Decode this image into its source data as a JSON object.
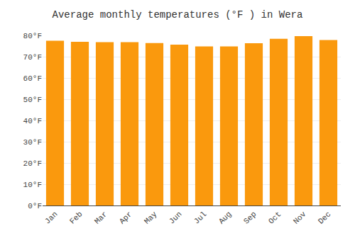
{
  "chart_data": {
    "type": "bar",
    "title": "Average monthly temperatures (°F ) in Wera",
    "categories": [
      "Jan",
      "Feb",
      "Mar",
      "Apr",
      "May",
      "Jun",
      "Jul",
      "Aug",
      "Sep",
      "Oct",
      "Nov",
      "Dec"
    ],
    "values": [
      77.5,
      77.0,
      76.8,
      76.8,
      76.4,
      75.7,
      74.8,
      74.8,
      76.3,
      78.4,
      79.7,
      77.8
    ],
    "color": "#fa990d",
    "ylim": [
      0,
      80
    ],
    "yticks": [
      {
        "value": 0,
        "label": "0°F"
      },
      {
        "value": 10,
        "label": "10°F"
      },
      {
        "value": 20,
        "label": "20°F"
      },
      {
        "value": 30,
        "label": "30°F"
      },
      {
        "value": 40,
        "label": "40°F"
      },
      {
        "value": 50,
        "label": "50°F"
      },
      {
        "value": 60,
        "label": "60°F"
      },
      {
        "value": 70,
        "label": "70°F"
      },
      {
        "value": 80,
        "label": "80°F"
      }
    ],
    "grid": true
  }
}
